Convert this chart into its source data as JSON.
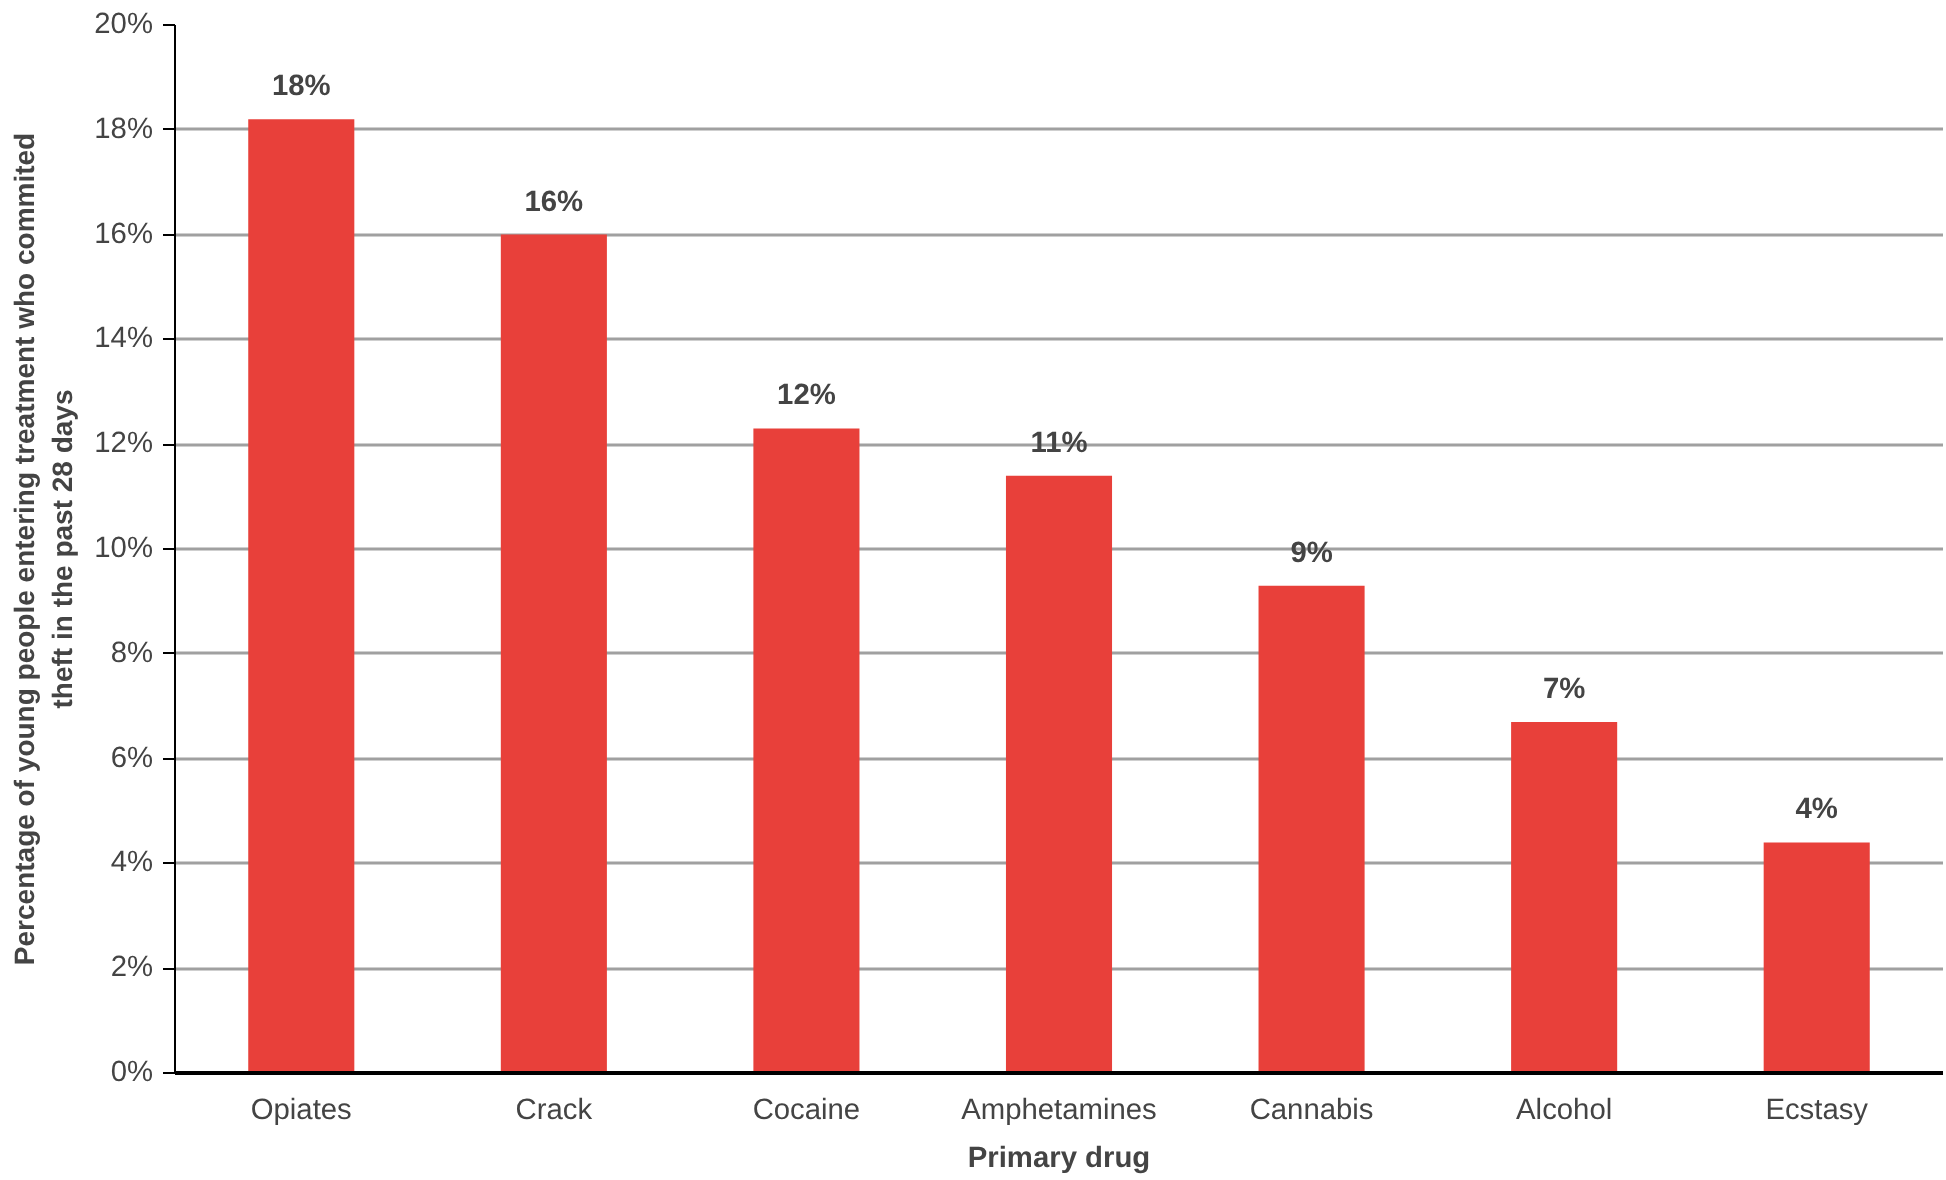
{
  "chart_data": {
    "type": "bar",
    "xlabel": "Primary drug",
    "ylabel": "Percentage of young people entering treatment who commited theft in the past 28 days",
    "categories": [
      "Opiates",
      "Crack",
      "Cocaine",
      "Amphetamines",
      "Cannabis",
      "Alcohol",
      "Ecstasy"
    ],
    "values": [
      18.2,
      16.0,
      12.3,
      11.4,
      9.3,
      6.7,
      4.4
    ],
    "value_labels": [
      "18%",
      "16%",
      "12%",
      "11%",
      "9%",
      "7%",
      "4%"
    ],
    "color": "#e8403a",
    "ylim": [
      0,
      20
    ],
    "yticks": [
      {
        "value": 0,
        "label": "0%"
      },
      {
        "value": 2,
        "label": "2%"
      },
      {
        "value": 4,
        "label": "4%"
      },
      {
        "value": 6,
        "label": "6%"
      },
      {
        "value": 8,
        "label": "8%"
      },
      {
        "value": 10,
        "label": "10%"
      },
      {
        "value": 12,
        "label": "12%"
      },
      {
        "value": 14,
        "label": "14%"
      },
      {
        "value": 16,
        "label": "16%"
      },
      {
        "value": 18,
        "label": "18%"
      },
      {
        "value": 20,
        "label": "20%"
      }
    ],
    "grid": "y"
  }
}
